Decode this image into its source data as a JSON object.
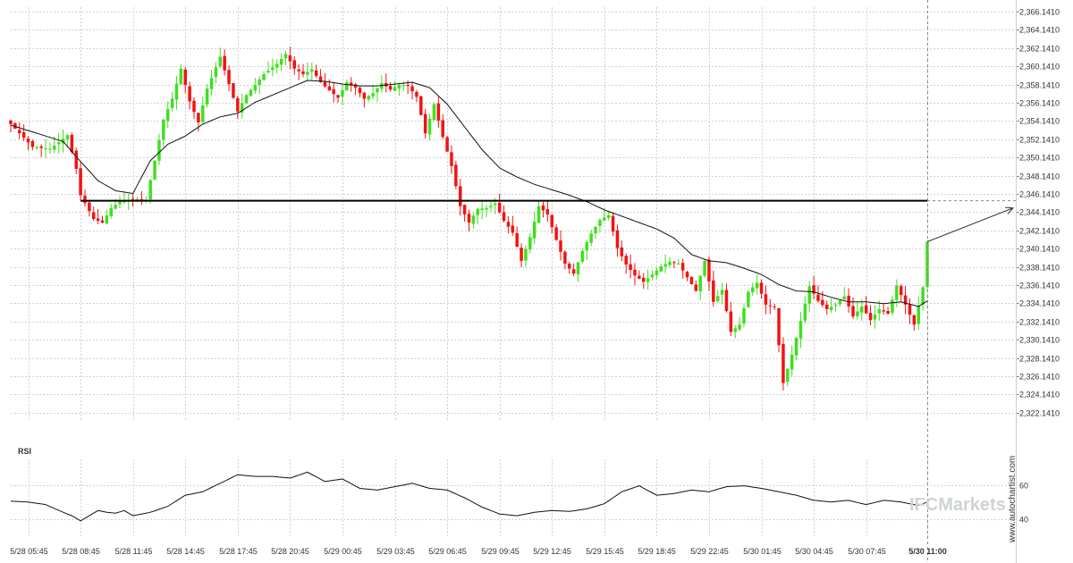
{
  "chart_data": {
    "type": "candlestick",
    "price_axis": {
      "ylim": [
        2321.141,
        2366.641
      ],
      "tick_labels": [
        "2,366.1410",
        "2,364.1410",
        "2,362.1410",
        "2,360.1410",
        "2,358.1410",
        "2,356.1410",
        "2,354.1410",
        "2,352.1410",
        "2,350.1410",
        "2,348.1410",
        "2,346.1410",
        "2,344.1410",
        "2,342.1410",
        "2,340.1410",
        "2,338.1410",
        "2,336.1410",
        "2,334.1410",
        "2,332.1410",
        "2,330.1410",
        "2,328.1410",
        "2,326.1410",
        "2,324.1410",
        "2,322.1410"
      ],
      "tick_values": [
        2366.141,
        2364.141,
        2362.141,
        2360.141,
        2358.141,
        2356.141,
        2354.141,
        2352.141,
        2350.141,
        2348.141,
        2346.141,
        2344.141,
        2342.141,
        2340.141,
        2338.141,
        2336.141,
        2334.141,
        2332.141,
        2330.141,
        2328.141,
        2326.141,
        2324.141,
        2322.141
      ]
    },
    "time_axis": {
      "tick_labels": [
        "5/28 05:45",
        "5/28 08:45",
        "5/28 11:45",
        "5/28 14:45",
        "5/28 17:45",
        "5/28 20:45",
        "5/29 00:45",
        "5/29 03:45",
        "5/29 06:45",
        "5/29 09:45",
        "5/29 12:45",
        "5/29 15:45",
        "5/29 18:45",
        "5/29 22:45",
        "5/30 01:45",
        "5/30 04:45",
        "5/30 07:45",
        "5/30 11:00"
      ],
      "tick_index": [
        4,
        16,
        28,
        40,
        52,
        64,
        76,
        88,
        100,
        112,
        124,
        136,
        148,
        160,
        172,
        184,
        196,
        210
      ],
      "last_label_bold": true
    },
    "key_level": 2345.4,
    "forecast_target": 2344.6,
    "current_close": 2340.9,
    "moving_average": {
      "knots_index": [
        0,
        4,
        8,
        12,
        16,
        20,
        24,
        28,
        32,
        36,
        40,
        44,
        48,
        52,
        56,
        60,
        64,
        68,
        72,
        76,
        80,
        84,
        88,
        92,
        96,
        100,
        104,
        108,
        112,
        116,
        120,
        124,
        128,
        132,
        136,
        140,
        144,
        148,
        152,
        156,
        160,
        164,
        168,
        172,
        176,
        180,
        184,
        188,
        192,
        196,
        200,
        204,
        208,
        210
      ],
      "knots_value": [
        2353.7,
        2353.1,
        2352.5,
        2351.9,
        2349.7,
        2347.6,
        2346.5,
        2346.2,
        2349.8,
        2351.6,
        2352.5,
        2353.8,
        2354.6,
        2355.0,
        2356.2,
        2357.0,
        2357.8,
        2358.6,
        2358.5,
        2358.2,
        2358.0,
        2358.0,
        2358.2,
        2358.4,
        2357.8,
        2356.0,
        2353.5,
        2351.0,
        2349.0,
        2348.0,
        2347.2,
        2346.6,
        2346.0,
        2345.3,
        2344.4,
        2343.7,
        2343.0,
        2342.3,
        2341.3,
        2339.5,
        2338.8,
        2338.6,
        2338.0,
        2337.3,
        2336.2,
        2335.5,
        2335.4,
        2334.8,
        2334.3,
        2334.3,
        2334.1,
        2334.3,
        2333.8,
        2334.4
      ]
    },
    "ohlc_knots": {
      "index": [
        0,
        5,
        9,
        11,
        13,
        15,
        16,
        19,
        21,
        23,
        25,
        29,
        31,
        33,
        35,
        37,
        39,
        41,
        43,
        45,
        48,
        50,
        52,
        54,
        56,
        58,
        61,
        63,
        65,
        67,
        69,
        71,
        73,
        75,
        77,
        79,
        81,
        83,
        85,
        87,
        89,
        91,
        93,
        95,
        97,
        99,
        101,
        103,
        105,
        107,
        109,
        111,
        113,
        115,
        117,
        119,
        121,
        123,
        125,
        127,
        129,
        131,
        133,
        135,
        137,
        139,
        141,
        143,
        145,
        147,
        149,
        151,
        153,
        155,
        157,
        159,
        161,
        163,
        165,
        167,
        169,
        171,
        173,
        175,
        177,
        179,
        181,
        183,
        185,
        187,
        189,
        191,
        193,
        195,
        197,
        199,
        201,
        203,
        205,
        207,
        209,
        210
      ],
      "close": [
        2353.8,
        2351.3,
        2351.1,
        2351.8,
        2352.6,
        2348.9,
        2346.0,
        2343.4,
        2343.0,
        2344.6,
        2345.3,
        2345.6,
        2345.5,
        2349.8,
        2354.3,
        2356.6,
        2359.9,
        2356.3,
        2354.0,
        2357.7,
        2361.2,
        2358.2,
        2355.2,
        2357.0,
        2358.1,
        2359.3,
        2360.4,
        2361.5,
        2359.9,
        2359.3,
        2359.8,
        2358.4,
        2357.5,
        2356.7,
        2358.4,
        2357.8,
        2356.6,
        2357.2,
        2358.3,
        2357.6,
        2358.1,
        2358.0,
        2356.8,
        2352.8,
        2356.0,
        2352.4,
        2349.2,
        2344.8,
        2343.0,
        2344.5,
        2344.6,
        2345.1,
        2343.2,
        2341.9,
        2338.8,
        2341.4,
        2344.8,
        2343.9,
        2341.1,
        2338.5,
        2337.4,
        2339.9,
        2341.8,
        2343.3,
        2343.8,
        2340.2,
        2338.4,
        2337.2,
        2336.5,
        2337.3,
        2338.2,
        2338.7,
        2338.5,
        2337.0,
        2335.5,
        2338.8,
        2334.3,
        2335.6,
        2331.0,
        2331.8,
        2335.4,
        2336.4,
        2334.0,
        2333.7,
        2325.4,
        2328.5,
        2332.2,
        2336.0,
        2334.4,
        2333.5,
        2334.0,
        2334.9,
        2332.7,
        2333.8,
        2332.3,
        2333.5,
        2333.0,
        2336.1,
        2334.0,
        2331.8,
        2335.9,
        2340.9
      ]
    },
    "rsi": {
      "label": "RSI",
      "ylim": [
        30,
        75
      ],
      "tick_labels": [
        "60",
        "40"
      ],
      "tick_values": [
        60,
        40
      ],
      "knots_index": [
        0,
        4,
        8,
        12,
        14,
        16,
        20,
        22,
        24,
        26,
        28,
        32,
        36,
        40,
        44,
        48,
        52,
        56,
        60,
        64,
        68,
        72,
        76,
        80,
        84,
        88,
        92,
        96,
        100,
        104,
        108,
        112,
        116,
        120,
        124,
        128,
        132,
        136,
        140,
        144,
        148,
        152,
        156,
        160,
        164,
        168,
        172,
        176,
        180,
        184,
        188,
        192,
        196,
        200,
        204,
        208,
        210
      ],
      "knots_value": [
        50.5,
        50.0,
        48.5,
        44.0,
        42.0,
        39.0,
        45.0,
        44.0,
        43.5,
        45.0,
        42.0,
        44.0,
        47.5,
        54.0,
        56.0,
        61.0,
        66.0,
        65.0,
        65.0,
        64.0,
        67.5,
        62.0,
        63.5,
        58.0,
        57.0,
        59.0,
        61.0,
        58.0,
        57.0,
        52.5,
        47.0,
        43.0,
        42.0,
        44.0,
        45.0,
        44.5,
        46.0,
        49.0,
        56.0,
        59.5,
        54.0,
        55.0,
        57.0,
        56.0,
        59.0,
        59.5,
        58.0,
        56.0,
        54.0,
        51.0,
        50.0,
        51.0,
        48.5,
        51.0,
        50.0,
        48.0,
        50.0
      ]
    },
    "watermark": "IFCMarkets",
    "credit": "www.autochartist.com"
  }
}
